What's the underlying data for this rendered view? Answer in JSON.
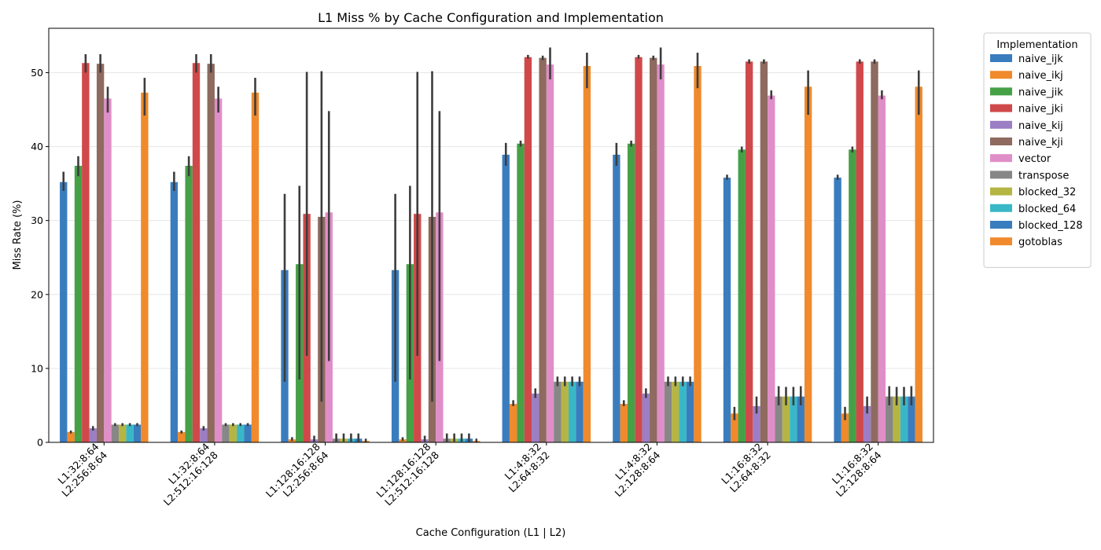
{
  "chart_data": {
    "type": "bar",
    "title": "L1 Miss % by Cache Configuration and Implementation",
    "xlabel": "Cache Configuration (L1 | L2)",
    "ylabel": "Miss Rate (%)",
    "ylim": [
      0,
      56
    ],
    "yticks": [
      0,
      10,
      20,
      30,
      40,
      50
    ],
    "grid": "y",
    "legend_title": "Implementation",
    "legend_position": "outside-right",
    "categories": [
      [
        "L1:32:8:64",
        "L2:256:8:64"
      ],
      [
        "L1:32:8:64",
        "L2:512:16:128"
      ],
      [
        "L1:128:16:128",
        "L2:256:8:64"
      ],
      [
        "L1:128:16:128",
        "L2:512:16:128"
      ],
      [
        "L1:4:8:32",
        "L2:64:8:32"
      ],
      [
        "L1:4:8:32",
        "L2:128:8:64"
      ],
      [
        "L1:16:8:32",
        "L2:64:8:32"
      ],
      [
        "L1:16:8:32",
        "L2:128:8:64"
      ]
    ],
    "series": [
      {
        "name": "naive_ijk",
        "color": "#3a7dbe",
        "values": [
          35.2,
          35.2,
          23.3,
          23.3,
          38.9,
          38.9,
          35.8,
          35.8
        ],
        "err": [
          [
            34.0,
            36.6
          ],
          [
            34.0,
            36.6
          ],
          [
            8.2,
            33.6
          ],
          [
            8.2,
            33.6
          ],
          [
            37.4,
            40.5
          ],
          [
            37.4,
            40.5
          ],
          [
            35.5,
            36.2
          ],
          [
            35.5,
            36.2
          ]
        ]
      },
      {
        "name": "naive_ikj",
        "color": "#f08a2c",
        "values": [
          1.4,
          1.4,
          0.4,
          0.4,
          5.2,
          5.2,
          3.9,
          3.9
        ],
        "err": [
          [
            1.2,
            1.6
          ],
          [
            1.2,
            1.6
          ],
          [
            0.2,
            0.7
          ],
          [
            0.2,
            0.7
          ],
          [
            4.9,
            5.7
          ],
          [
            4.9,
            5.7
          ],
          [
            3.0,
            4.8
          ],
          [
            3.0,
            4.8
          ]
        ]
      },
      {
        "name": "naive_jik",
        "color": "#46a146",
        "values": [
          37.4,
          37.4,
          24.1,
          24.1,
          40.4,
          40.4,
          39.6,
          39.6
        ],
        "err": [
          [
            36.0,
            38.7
          ],
          [
            36.0,
            38.7
          ],
          [
            8.5,
            34.7
          ],
          [
            8.5,
            34.7
          ],
          [
            40.0,
            40.8
          ],
          [
            40.0,
            40.8
          ],
          [
            39.2,
            40.0
          ],
          [
            39.2,
            40.0
          ]
        ]
      },
      {
        "name": "naive_jki",
        "color": "#d0494a",
        "values": [
          51.3,
          51.3,
          30.9,
          30.9,
          52.1,
          52.1,
          51.5,
          51.5
        ],
        "err": [
          [
            50.0,
            52.5
          ],
          [
            50.0,
            52.5
          ],
          [
            11.7,
            50.1
          ],
          [
            11.7,
            50.1
          ],
          [
            51.9,
            52.4
          ],
          [
            51.9,
            52.4
          ],
          [
            51.2,
            51.8
          ],
          [
            51.2,
            51.8
          ]
        ]
      },
      {
        "name": "naive_kij",
        "color": "#9b7ec4",
        "values": [
          1.9,
          1.9,
          0.4,
          0.4,
          6.6,
          6.6,
          4.9,
          4.9
        ],
        "err": [
          [
            1.6,
            2.2
          ],
          [
            1.6,
            2.2
          ],
          [
            0.1,
            0.9
          ],
          [
            0.1,
            0.9
          ],
          [
            6.0,
            7.3
          ],
          [
            6.0,
            7.3
          ],
          [
            3.9,
            6.2
          ],
          [
            3.9,
            6.2
          ]
        ]
      },
      {
        "name": "naive_kji",
        "color": "#8e6a5f",
        "values": [
          51.2,
          51.2,
          30.5,
          30.5,
          52.0,
          52.0,
          51.5,
          51.5
        ],
        "err": [
          [
            50.0,
            52.5
          ],
          [
            50.0,
            52.5
          ],
          [
            5.5,
            50.2
          ],
          [
            5.5,
            50.2
          ],
          [
            51.7,
            52.3
          ],
          [
            51.7,
            52.3
          ],
          [
            51.2,
            51.8
          ],
          [
            51.2,
            51.8
          ]
        ]
      },
      {
        "name": "vector",
        "color": "#e08ec8",
        "values": [
          46.5,
          46.5,
          31.1,
          31.1,
          51.1,
          51.1,
          46.9,
          46.9
        ],
        "err": [
          [
            44.6,
            48.1
          ],
          [
            44.6,
            48.1
          ],
          [
            11.0,
            44.8
          ],
          [
            11.0,
            44.8
          ],
          [
            49.1,
            53.4
          ],
          [
            49.1,
            53.4
          ],
          [
            46.4,
            47.6
          ],
          [
            46.4,
            47.6
          ]
        ]
      },
      {
        "name": "transpose",
        "color": "#878787",
        "values": [
          2.4,
          2.4,
          0.5,
          0.5,
          8.2,
          8.2,
          6.2,
          6.2
        ],
        "err": [
          [
            2.2,
            2.6
          ],
          [
            2.2,
            2.6
          ],
          [
            0.1,
            1.2
          ],
          [
            0.1,
            1.2
          ],
          [
            7.6,
            8.9
          ],
          [
            7.6,
            8.9
          ],
          [
            5.0,
            7.6
          ],
          [
            5.0,
            7.6
          ]
        ]
      },
      {
        "name": "blocked_32",
        "color": "#b5b544",
        "values": [
          2.4,
          2.4,
          0.5,
          0.5,
          8.2,
          8.2,
          6.2,
          6.2
        ],
        "err": [
          [
            2.2,
            2.6
          ],
          [
            2.2,
            2.6
          ],
          [
            0.1,
            1.2
          ],
          [
            0.1,
            1.2
          ],
          [
            7.6,
            8.9
          ],
          [
            7.6,
            8.9
          ],
          [
            5.0,
            7.5
          ],
          [
            5.0,
            7.5
          ]
        ]
      },
      {
        "name": "blocked_64",
        "color": "#3ab7c7",
        "values": [
          2.4,
          2.4,
          0.5,
          0.5,
          8.2,
          8.2,
          6.2,
          6.2
        ],
        "err": [
          [
            2.2,
            2.6
          ],
          [
            2.2,
            2.6
          ],
          [
            0.1,
            1.2
          ],
          [
            0.1,
            1.2
          ],
          [
            7.6,
            8.9
          ],
          [
            7.6,
            8.9
          ],
          [
            5.0,
            7.5
          ],
          [
            5.0,
            7.5
          ]
        ]
      },
      {
        "name": "blocked_128",
        "color": "#3a7dbe",
        "values": [
          2.4,
          2.4,
          0.5,
          0.5,
          8.2,
          8.2,
          6.2,
          6.2
        ],
        "err": [
          [
            2.2,
            2.6
          ],
          [
            2.2,
            2.6
          ],
          [
            0.1,
            1.2
          ],
          [
            0.1,
            1.2
          ],
          [
            7.6,
            8.9
          ],
          [
            7.6,
            8.9
          ],
          [
            5.0,
            7.6
          ],
          [
            5.0,
            7.6
          ]
        ]
      },
      {
        "name": "gotoblas",
        "color": "#f08a2c",
        "values": [
          47.3,
          47.3,
          0.2,
          0.2,
          50.9,
          50.9,
          48.1,
          48.1
        ],
        "err": [
          [
            44.2,
            49.3
          ],
          [
            44.2,
            49.3
          ],
          [
            0.0,
            0.5
          ],
          [
            0.0,
            0.5
          ],
          [
            47.9,
            52.7
          ],
          [
            47.9,
            52.7
          ],
          [
            44.3,
            50.3
          ],
          [
            44.3,
            50.3
          ]
        ]
      }
    ]
  }
}
